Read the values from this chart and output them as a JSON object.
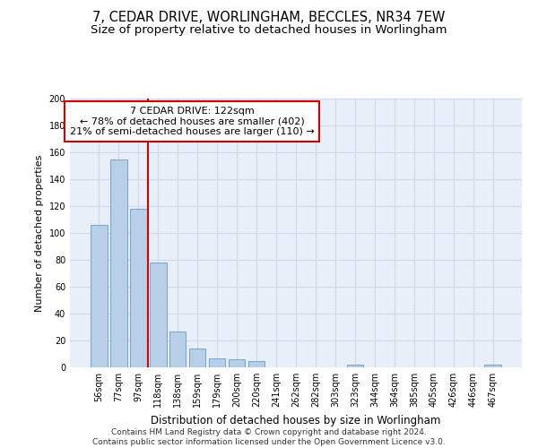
{
  "title": "7, CEDAR DRIVE, WORLINGHAM, BECCLES, NR34 7EW",
  "subtitle": "Size of property relative to detached houses in Worlingham",
  "xlabel": "Distribution of detached houses by size in Worlingham",
  "ylabel": "Number of detached properties",
  "categories": [
    "56sqm",
    "77sqm",
    "97sqm",
    "118sqm",
    "138sqm",
    "159sqm",
    "179sqm",
    "200sqm",
    "220sqm",
    "241sqm",
    "262sqm",
    "282sqm",
    "303sqm",
    "323sqm",
    "344sqm",
    "364sqm",
    "385sqm",
    "405sqm",
    "426sqm",
    "446sqm",
    "467sqm"
  ],
  "values": [
    106,
    155,
    118,
    78,
    27,
    14,
    7,
    6,
    5,
    0,
    0,
    0,
    0,
    2,
    0,
    0,
    0,
    0,
    0,
    0,
    2
  ],
  "bar_color": "#b8cfe8",
  "bar_edge_color": "#6699cc",
  "grid_color": "#ccd9e8",
  "bg_color": "#e8eff8",
  "property_line_color": "#cc0000",
  "property_line_index": 3,
  "annotation_text": "7 CEDAR DRIVE: 122sqm\n← 78% of detached houses are smaller (402)\n21% of semi-detached houses are larger (110) →",
  "annotation_box_color": "#cc0000",
  "ylim": [
    0,
    200
  ],
  "yticks": [
    0,
    20,
    40,
    60,
    80,
    100,
    120,
    140,
    160,
    180,
    200
  ],
  "footer": "Contains HM Land Registry data © Crown copyright and database right 2024.\nContains public sector information licensed under the Open Government Licence v3.0.",
  "title_fontsize": 10.5,
  "subtitle_fontsize": 9.5,
  "xlabel_fontsize": 8.5,
  "ylabel_fontsize": 8,
  "tick_fontsize": 7,
  "annotation_fontsize": 8,
  "footer_fontsize": 6.5
}
